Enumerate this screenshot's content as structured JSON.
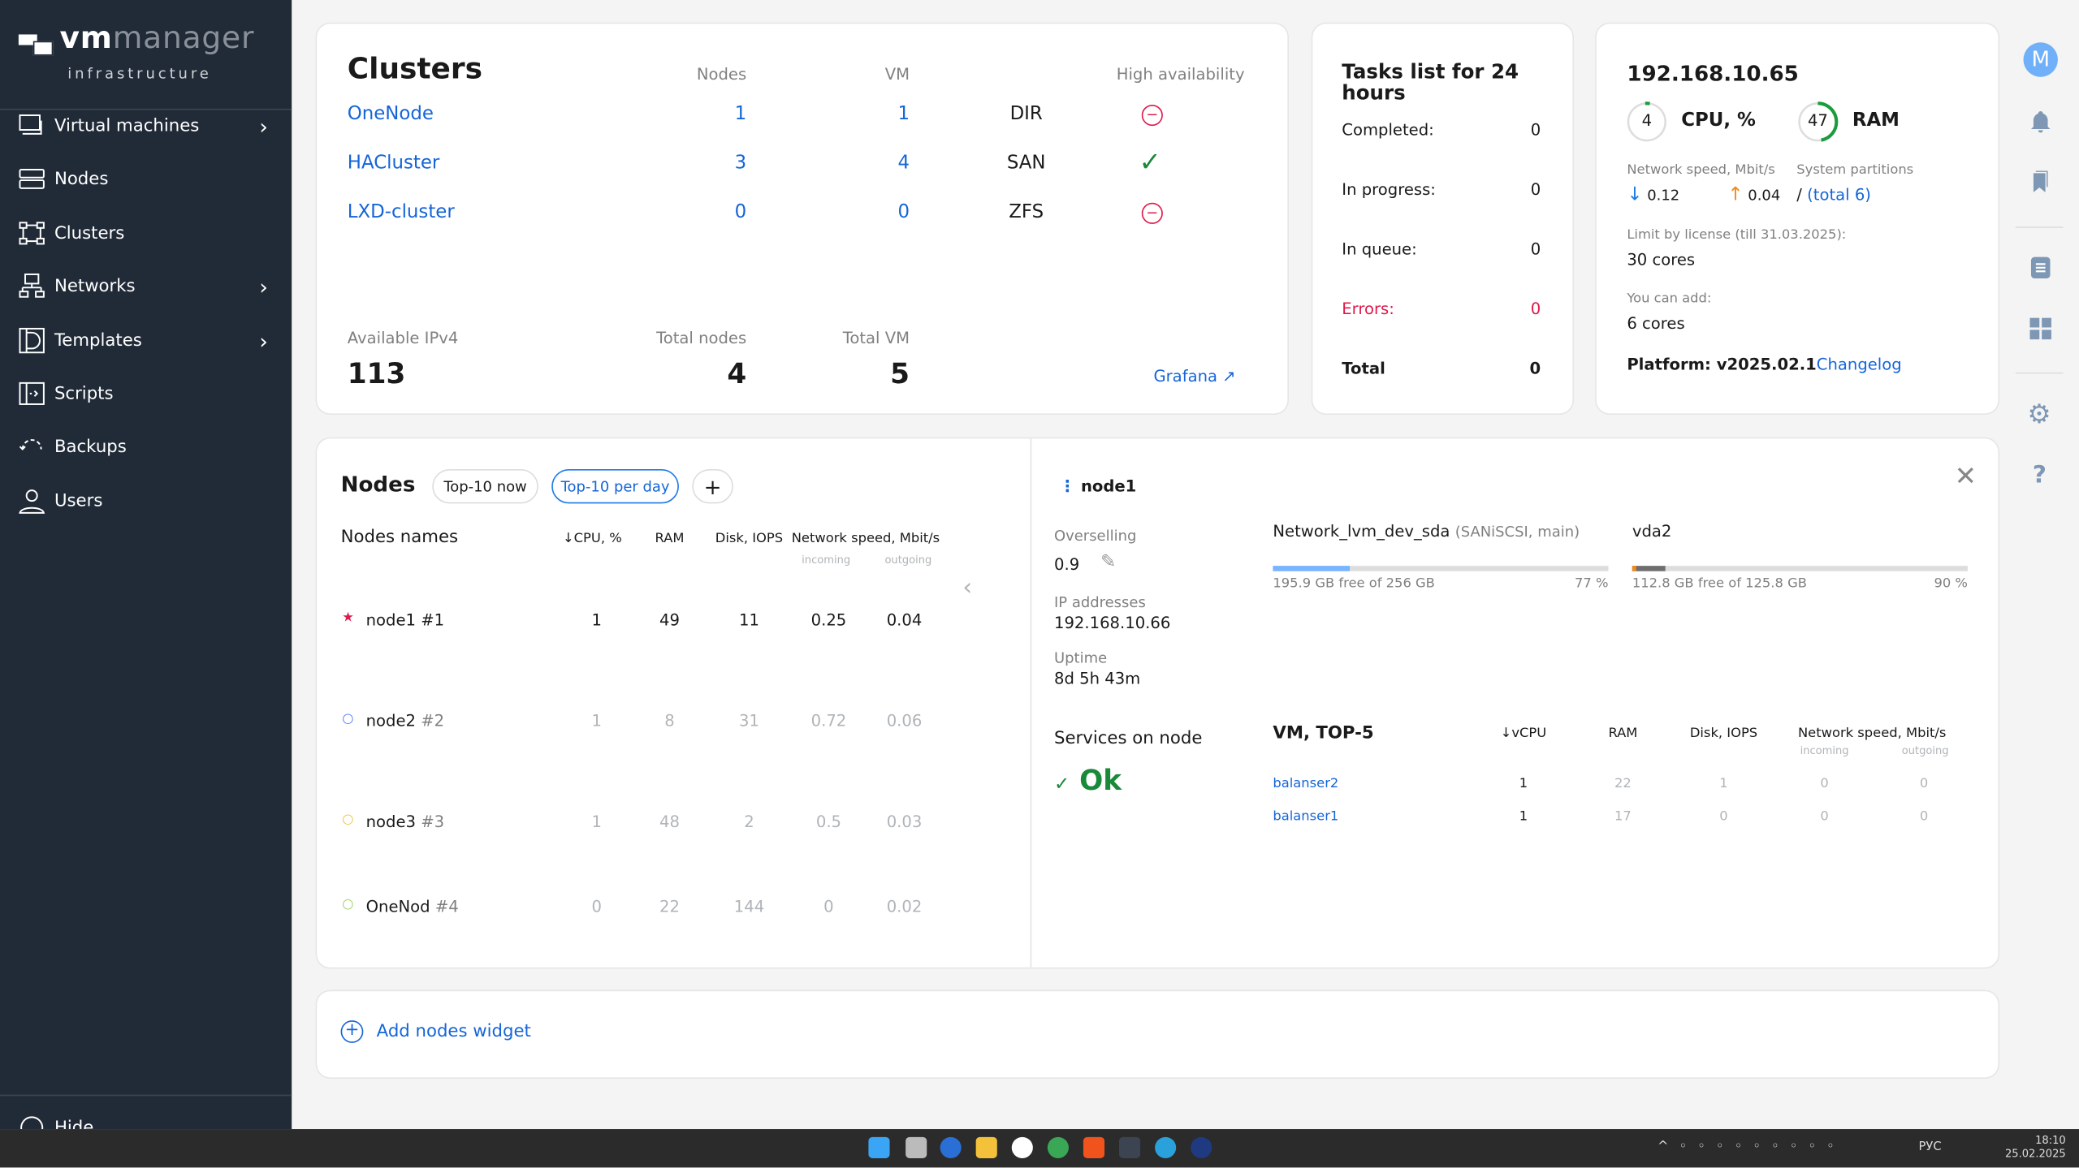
{
  "sidebar": {
    "logo_vm": "vm",
    "logo_manager": "manager",
    "logo_sub": "infrastructure",
    "items": [
      {
        "label": "Virtual machines"
      },
      {
        "label": "Nodes"
      },
      {
        "label": "Clusters"
      },
      {
        "label": "Networks"
      },
      {
        "label": "Templates"
      },
      {
        "label": "Scripts"
      },
      {
        "label": "Backups"
      },
      {
        "label": "Users"
      }
    ],
    "hide_label": "Hide"
  },
  "clusters": {
    "title": "Clusters",
    "col_nodes": "Nodes",
    "col_vm": "VM",
    "col_ha": "High availability",
    "rows": [
      {
        "name": "OneNode",
        "nodes": "1",
        "vm": "1",
        "storage": "DIR",
        "ha": "off"
      },
      {
        "name": "HACluster",
        "nodes": "3",
        "vm": "4",
        "storage": "SAN",
        "ha": "on"
      },
      {
        "name": "LXD-cluster",
        "nodes": "0",
        "vm": "0",
        "storage": "ZFS",
        "ha": "off"
      }
    ],
    "available_ipv4_label": "Available IPv4",
    "available_ipv4": "113",
    "total_nodes_label": "Total nodes",
    "total_nodes": "4",
    "total_vm_label": "Total VM",
    "total_vm": "5",
    "grafana": "Grafana"
  },
  "tasks": {
    "title": "Tasks list for 24 hours",
    "rows": [
      {
        "label": "Completed:",
        "value": "0"
      },
      {
        "label": "In progress:",
        "value": "0"
      },
      {
        "label": "In queue:",
        "value": "0"
      },
      {
        "label": "Errors:",
        "value": "0"
      },
      {
        "label": "Total",
        "value": "0"
      }
    ]
  },
  "server": {
    "ip": "192.168.10.65",
    "cpu_value": "4",
    "cpu_label": "CPU, %",
    "cpu_pct": 4,
    "ram_value": "47",
    "ram_label": "RAM",
    "ram_pct": 47,
    "net_label": "Network speed, Mbit/s",
    "net_in": "0.12",
    "net_out": "0.04",
    "partitions_label": "System partitions",
    "partitions_slash": "/",
    "partitions_total": "(total 6)",
    "license_label": "Limit by license (till 31.03.2025):",
    "license_value": "30 cores",
    "add_label": "You can add:",
    "add_value": "6 cores",
    "platform": "Platform: v2025.02.1",
    "changelog": "Changelog"
  },
  "rail": {
    "avatar": "M"
  },
  "nodes": {
    "title": "Nodes",
    "tab_now": "Top-10 now",
    "tab_day": "Top-10 per day",
    "add": "+",
    "col_names": "Nodes names",
    "col_cpu": "↓CPU, %",
    "col_ram": "RAM",
    "col_disk": "Disk, IOPS",
    "col_net": "Network speed, Mbit/s",
    "col_in": "incoming",
    "col_out": "outgoing",
    "rows": [
      {
        "name": "node1",
        "num": "#1",
        "cpu": "1",
        "ram": "49",
        "disk": "11",
        "in": "0.25",
        "out": "0.04",
        "marker": "★",
        "color": "#e0194a"
      },
      {
        "name": "node2",
        "num": "#2",
        "cpu": "1",
        "ram": "8",
        "disk": "31",
        "in": "0.72",
        "out": "0.06",
        "marker": "○",
        "color": "#4f7cff"
      },
      {
        "name": "node3",
        "num": "#3",
        "cpu": "1",
        "ram": "48",
        "disk": "2",
        "in": "0.5",
        "out": "0.03",
        "marker": "○",
        "color": "#f0c23a"
      },
      {
        "name": "OneNod",
        "num": "#4",
        "cpu": "0",
        "ram": "22",
        "disk": "144",
        "in": "0",
        "out": "0.02",
        "marker": "○",
        "color": "#9ccc65"
      }
    ]
  },
  "detail": {
    "name": "node1",
    "overselling_label": "Overselling",
    "overselling": "0.9",
    "ip_label": "IP addresses",
    "ip": "192.168.10.66",
    "uptime_label": "Uptime",
    "uptime": "8d 5h 43m",
    "services_label": "Services on node",
    "services_status": "Ok",
    "storages": [
      {
        "name": "Network_lvm_dev_sda",
        "meta": "(SANiSCSI, main)",
        "free": "195.9 GB free of 256 GB",
        "pct": "77 %",
        "used_pct": 23,
        "color": "#78b4ff"
      },
      {
        "name": "vda2",
        "meta": "",
        "free": "112.8 GB free of 125.8 GB",
        "pct": "90 %",
        "used_pct": 10,
        "color": "#6e6e6e"
      }
    ],
    "vm_title": "VM, TOP-5",
    "col_vcpu": "↓vCPU",
    "col_ram": "RAM",
    "col_disk": "Disk, IOPS",
    "col_net": "Network speed, Mbit/s",
    "col_in": "incoming",
    "col_out": "outgoing",
    "vms": [
      {
        "name": "balanser2",
        "vcpu": "1",
        "ram": "22",
        "disk": "1",
        "in": "0",
        "out": "0"
      },
      {
        "name": "balanser1",
        "vcpu": "1",
        "ram": "17",
        "disk": "0",
        "in": "0",
        "out": "0"
      }
    ]
  },
  "add_widget": "Add nodes widget",
  "taskbar": {
    "lang": "РУС",
    "time": "18:10",
    "date": "25.02.2025"
  }
}
